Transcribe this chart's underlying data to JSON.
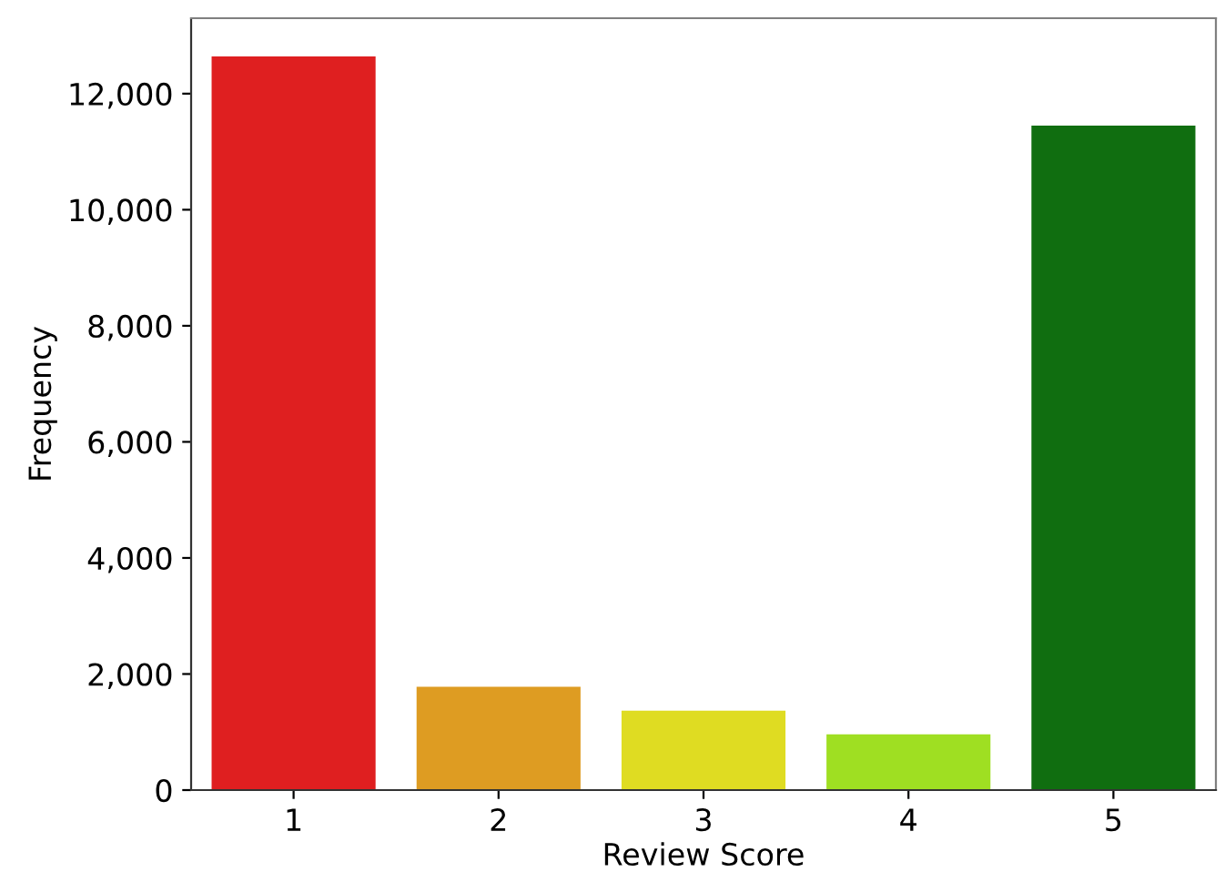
{
  "chart_data": {
    "type": "bar",
    "xlabel": "Review Score",
    "ylabel": "Frequency",
    "categories": [
      "1",
      "2",
      "3",
      "4",
      "5"
    ],
    "values": [
      12640,
      1780,
      1370,
      960,
      11450
    ],
    "colors": [
      "#df1f20",
      "#de9c22",
      "#dfdc22",
      "#9fdf22",
      "#106e10"
    ],
    "ylim": [
      0,
      13300
    ],
    "yticks": [
      0,
      {
        "value": 2000,
        "label": "2,000"
      },
      {
        "value": 4000,
        "label": "4,000"
      },
      {
        "value": 6000,
        "label": "6,000"
      },
      {
        "value": 8000,
        "label": "8,000"
      },
      {
        "value": 10000,
        "label": "10,000"
      },
      {
        "value": 12000,
        "label": "12,000"
      }
    ],
    "grid": false,
    "legend": false
  }
}
